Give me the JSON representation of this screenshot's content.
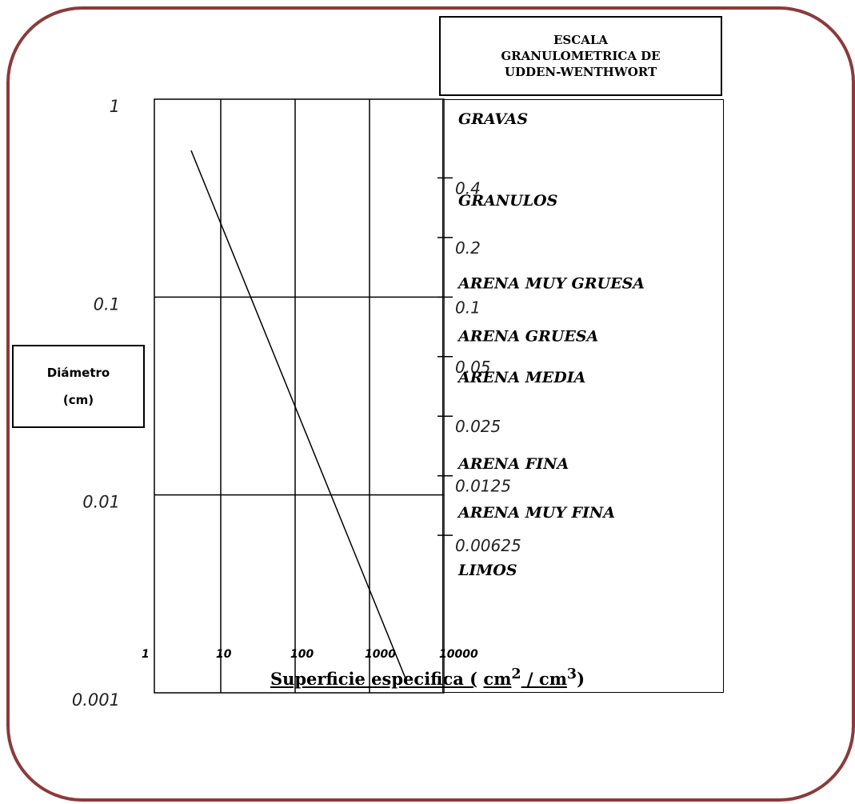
{
  "scale_title": [
    "ESCALA",
    "GRANULOMETRICA DE",
    "UDDEN-WENTHWORT"
  ],
  "y_label": [
    "Diámetro",
    "(cm)"
  ],
  "x_label": {
    "main": "Superficie especifica (",
    "unit1": "cm",
    "sup1": "2",
    "slash": " / ",
    "unit2": "cm",
    "sup2": "3",
    "close": ")"
  },
  "colors": {
    "frame": "#8b3a3a",
    "lines": "#000000"
  },
  "chart_data": {
    "type": "line",
    "x_scale": "log",
    "y_scale": "log",
    "xlim": [
      1,
      10000
    ],
    "ylim": [
      0.001,
      1
    ],
    "x_ticks": [
      "1",
      "10",
      "100",
      "1000",
      "10000"
    ],
    "y_ticks": [
      "1",
      "0.1",
      "0.01",
      "0.001"
    ],
    "grid": true,
    "series": [
      {
        "x": [
          4,
          3000
        ],
        "y": [
          0.55,
          0.0012
        ]
      }
    ],
    "scale_limits": [
      {
        "value": 0.4,
        "label": "0.4"
      },
      {
        "value": 0.2,
        "label": "0.2"
      },
      {
        "value": 0.1,
        "label": "0.1"
      },
      {
        "value": 0.05,
        "label": "0.05"
      },
      {
        "value": 0.025,
        "label": "0.025"
      },
      {
        "value": 0.0125,
        "label": "0.0125"
      },
      {
        "value": 0.00625,
        "label": "0.00625"
      }
    ],
    "classes": [
      {
        "name": "GRAVAS",
        "y": 0.8
      },
      {
        "name": "GRANULOS",
        "y": 0.31
      },
      {
        "name": "ARENA MUY GRUESA",
        "y": 0.118
      },
      {
        "name": "ARENA GRUESA",
        "y": 0.064
      },
      {
        "name": "ARENA MEDIA",
        "y": 0.0395
      },
      {
        "name": "ARENA FINA",
        "y": 0.0145
      },
      {
        "name": "ARENA MUY FINA",
        "y": 0.0082
      },
      {
        "name": "LIMOS",
        "y": 0.0042
      }
    ]
  }
}
